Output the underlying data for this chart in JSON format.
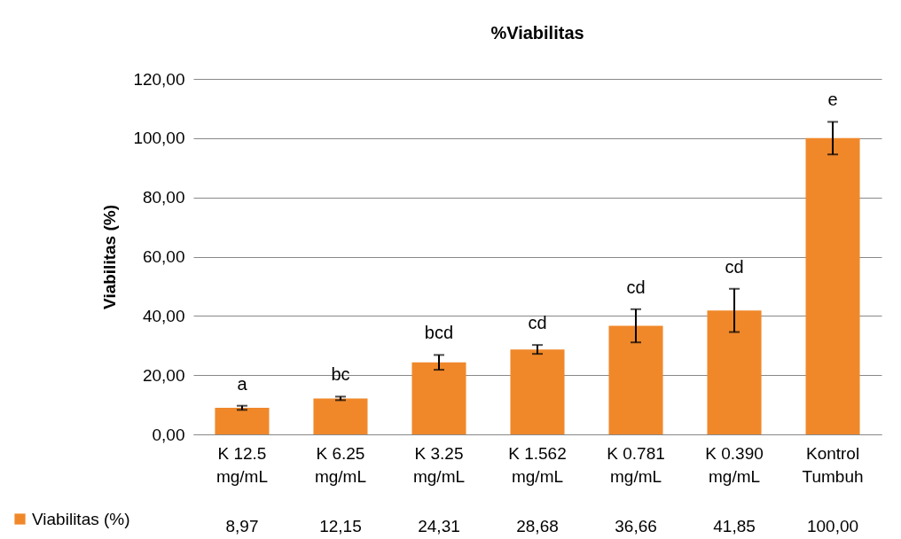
{
  "chart_data": {
    "type": "bar",
    "title": "%Viabilitas",
    "ylabel": "Viabilitas (%)",
    "categories": [
      "K 12.5 mg/mL",
      "K 6.25 mg/mL",
      "K 3.25 mg/mL",
      "K 1.562 mg/mL",
      "K 0.781 mg/mL",
      "K 0.390 mg/mL",
      "Kontrol Tumbuh"
    ],
    "series": [
      {
        "name": "Viabilitas (%)",
        "color": "#f0882a",
        "values": [
          8.97,
          12.15,
          24.31,
          28.68,
          36.66,
          41.85,
          100.0
        ],
        "errors": [
          0.7,
          0.6,
          2.5,
          1.5,
          5.6,
          7.3,
          5.5
        ]
      }
    ],
    "ylim": [
      0,
      120
    ],
    "yticks": [
      {
        "value": 0,
        "label": "0,00"
      },
      {
        "value": 20,
        "label": "20,00"
      },
      {
        "value": 40,
        "label": "40,00"
      },
      {
        "value": 60,
        "label": "60,00"
      },
      {
        "value": 80,
        "label": "80,00"
      },
      {
        "value": 100,
        "label": "100,00"
      },
      {
        "value": 120,
        "label": "120,00"
      }
    ],
    "grid": "y",
    "legend": "bottom",
    "value_labels": [
      "8,97",
      "12,15",
      "24,31",
      "28,68",
      "36,66",
      "41,85",
      "100,00"
    ],
    "annotations": [
      "a",
      "bc",
      "bcd",
      "cd",
      "cd",
      "cd",
      "e"
    ]
  }
}
